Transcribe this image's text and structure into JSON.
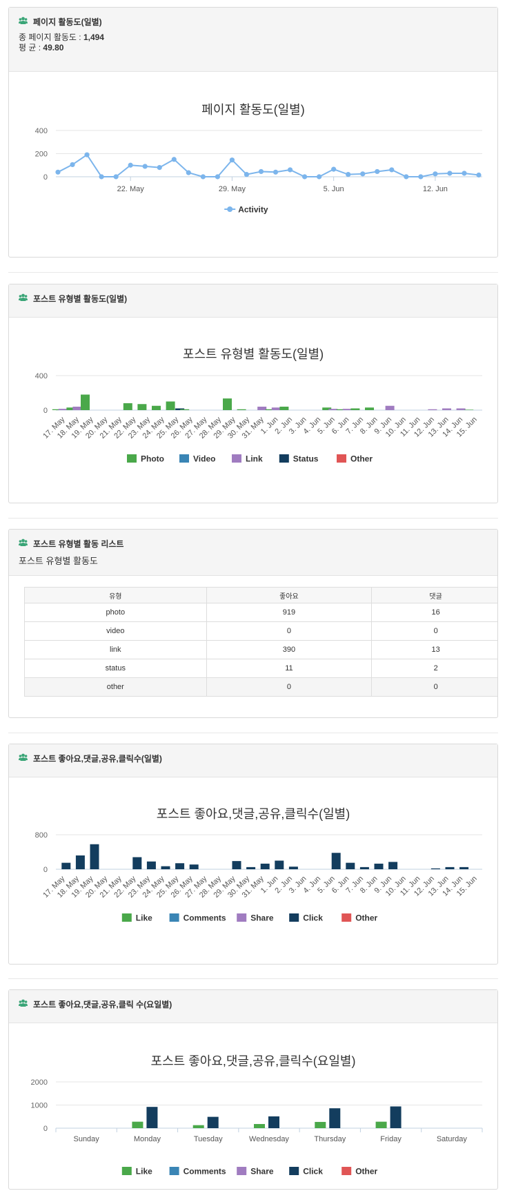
{
  "panels": {
    "page_activity": {
      "title": "페이지 활동도(일별)",
      "total_label": "종 페이지 활동도 : ",
      "total_value": "1,494",
      "avg_label": "평 균 : ",
      "avg_value": "49.80"
    },
    "post_type_activity": {
      "title": "포스트 유형별 활동도(일별)"
    },
    "post_type_list": {
      "title": "포스트 유형별 활동 리스트",
      "subtitle": "포스트 유형별 활동도",
      "columns": [
        "유형",
        "좋아요",
        "댓글"
      ],
      "rows": [
        [
          "photo",
          "919",
          "16"
        ],
        [
          "video",
          "0",
          "0"
        ],
        [
          "link",
          "390",
          "13"
        ],
        [
          "status",
          "11",
          "2"
        ],
        [
          "other",
          "0",
          "0"
        ]
      ]
    },
    "engagement_daily": {
      "title": "포스트 좋아요,댓글,공유,클릭수(일별)"
    },
    "engagement_weekday": {
      "title": "포스트 좋아요,댓글,공유,클릭 수(요일별)"
    }
  },
  "colors": {
    "activity": "#7cb5ec",
    "photo": "#4aa84a",
    "video": "#3a85b5",
    "link": "#a07cc0",
    "status": "#133d5e",
    "other": "#e05555"
  },
  "icon": "users-icon",
  "chart_data": [
    {
      "type": "line",
      "title": "페이지 활동도(일별)",
      "x": [
        "2024-05-17",
        "2024-05-18",
        "2024-05-19",
        "2024-05-20",
        "2024-05-21",
        "2024-05-22",
        "2024-05-23",
        "2024-05-24",
        "2024-05-25",
        "2024-05-26",
        "2024-05-27",
        "2024-05-28",
        "2024-05-29",
        "2024-05-30",
        "2024-05-31",
        "2024-06-01",
        "2024-06-02",
        "2024-06-03",
        "2024-06-04",
        "2024-06-05",
        "2024-06-06",
        "2024-06-07",
        "2024-06-08",
        "2024-06-09",
        "2024-06-10",
        "2024-06-11",
        "2024-06-12",
        "2024-06-13",
        "2024-06-14",
        "2024-06-15"
      ],
      "x_ticks": [
        "22. May",
        "29. May",
        "5. Jun",
        "12. Jun"
      ],
      "x_tick_values": [
        "2024-05-22",
        "2024-05-29",
        "2024-06-05",
        "2024-06-12"
      ],
      "series": [
        {
          "name": "Activity",
          "values": [
            40,
            105,
            190,
            0,
            0,
            100,
            90,
            80,
            150,
            35,
            0,
            0,
            145,
            20,
            45,
            40,
            60,
            0,
            0,
            65,
            20,
            25,
            45,
            60,
            0,
            0,
            25,
            30,
            30,
            15
          ]
        }
      ],
      "yticks": [
        0,
        200,
        400
      ],
      "ylim": [
        0,
        400
      ],
      "grid": true,
      "legend": "bottom"
    },
    {
      "type": "bar",
      "title": "포스트 유형별 활동도(일별)",
      "categories": [
        "17. May",
        "18. May",
        "19. May",
        "20. May",
        "21. May",
        "22. May",
        "23. May",
        "24. May",
        "25. May",
        "26. May",
        "27. May",
        "28. May",
        "29. May",
        "30. May",
        "31. May",
        "1. Jun",
        "2. Jun",
        "3. Jun",
        "4. Jun",
        "5. Jun",
        "6. Jun",
        "7. Jun",
        "8. Jun",
        "9. Jun",
        "10. Jun",
        "11. Jun",
        "12. Jun",
        "13. Jun",
        "14. Jun",
        "15. Jun"
      ],
      "series": [
        {
          "name": "Photo",
          "values": [
            10,
            30,
            180,
            0,
            0,
            80,
            70,
            50,
            100,
            10,
            0,
            0,
            135,
            10,
            0,
            10,
            40,
            0,
            0,
            30,
            10,
            20,
            30,
            0,
            0,
            0,
            0,
            0,
            0,
            5
          ]
        },
        {
          "name": "Video",
          "values": [
            0,
            0,
            0,
            0,
            0,
            0,
            0,
            0,
            0,
            0,
            0,
            0,
            0,
            0,
            0,
            0,
            0,
            0,
            0,
            0,
            0,
            0,
            0,
            0,
            0,
            0,
            0,
            0,
            0,
            0
          ]
        },
        {
          "name": "Link",
          "values": [
            15,
            40,
            0,
            0,
            0,
            0,
            0,
            0,
            0,
            0,
            0,
            0,
            0,
            0,
            40,
            30,
            0,
            0,
            0,
            15,
            15,
            0,
            0,
            50,
            0,
            0,
            10,
            20,
            20,
            0
          ]
        },
        {
          "name": "Status",
          "values": [
            0,
            0,
            0,
            0,
            0,
            0,
            0,
            0,
            20,
            0,
            0,
            0,
            0,
            0,
            0,
            0,
            0,
            0,
            0,
            0,
            0,
            0,
            0,
            0,
            0,
            0,
            0,
            0,
            0,
            0
          ]
        },
        {
          "name": "Other",
          "values": [
            0,
            0,
            0,
            0,
            0,
            0,
            0,
            0,
            0,
            0,
            0,
            0,
            0,
            0,
            0,
            0,
            0,
            0,
            0,
            0,
            0,
            0,
            0,
            0,
            0,
            0,
            0,
            0,
            0,
            0
          ]
        }
      ],
      "yticks": [
        0,
        400
      ],
      "ylim": [
        0,
        400
      ],
      "grid": true,
      "legend": "bottom"
    },
    {
      "type": "bar",
      "title": "포스트 좋아요,댓글,공유,클릭수(일별)",
      "categories": [
        "17. May",
        "18. May",
        "19. May",
        "20. May",
        "21. May",
        "22. May",
        "23. May",
        "24. May",
        "25. May",
        "26. May",
        "27. May",
        "28. May",
        "29. May",
        "30. May",
        "31. May",
        "1. Jun",
        "2. Jun",
        "3. Jun",
        "4. Jun",
        "5. Jun",
        "6. Jun",
        "7. Jun",
        "8. Jun",
        "9. Jun",
        "10. Jun",
        "11. Jun",
        "12. Jun",
        "13. Jun",
        "14. Jun",
        "15. Jun"
      ],
      "series": [
        {
          "name": "Like",
          "values": [
            0,
            0,
            0,
            0,
            0,
            0,
            0,
            0,
            0,
            0,
            0,
            0,
            0,
            0,
            0,
            0,
            0,
            0,
            0,
            0,
            0,
            0,
            0,
            0,
            0,
            0,
            0,
            0,
            0,
            0
          ]
        },
        {
          "name": "Comments",
          "values": [
            0,
            0,
            0,
            0,
            0,
            0,
            0,
            0,
            0,
            0,
            0,
            0,
            0,
            0,
            0,
            0,
            0,
            0,
            0,
            0,
            0,
            0,
            0,
            0,
            0,
            0,
            0,
            0,
            0,
            0
          ]
        },
        {
          "name": "Share",
          "values": [
            0,
            0,
            0,
            0,
            0,
            0,
            0,
            0,
            0,
            0,
            0,
            0,
            0,
            0,
            0,
            0,
            0,
            0,
            0,
            0,
            0,
            0,
            0,
            0,
            0,
            0,
            0,
            0,
            0,
            0
          ]
        },
        {
          "name": "Click",
          "values": [
            150,
            320,
            580,
            0,
            0,
            280,
            180,
            70,
            140,
            110,
            0,
            0,
            190,
            50,
            130,
            200,
            60,
            0,
            0,
            380,
            150,
            50,
            130,
            170,
            0,
            0,
            20,
            50,
            50,
            0
          ]
        },
        {
          "name": "Other",
          "values": [
            0,
            0,
            0,
            0,
            0,
            0,
            0,
            0,
            0,
            0,
            0,
            0,
            0,
            0,
            0,
            0,
            0,
            0,
            0,
            0,
            0,
            0,
            0,
            0,
            0,
            0,
            0,
            0,
            0,
            0
          ]
        }
      ],
      "yticks": [
        0,
        800
      ],
      "ylim": [
        0,
        800
      ],
      "grid": true,
      "legend": "bottom"
    },
    {
      "type": "bar",
      "title": "포스트 좋아요,댓글,공유,클릭수(요일별)",
      "categories": [
        "Sunday",
        "Monday",
        "Tuesday",
        "Wednesday",
        "Thursday",
        "Friday",
        "Saturday"
      ],
      "series": [
        {
          "name": "Like",
          "values": [
            0,
            280,
            130,
            180,
            270,
            280,
            0
          ]
        },
        {
          "name": "Comments",
          "values": [
            0,
            0,
            0,
            0,
            0,
            0,
            0
          ]
        },
        {
          "name": "Share",
          "values": [
            0,
            0,
            0,
            0,
            0,
            0,
            0
          ]
        },
        {
          "name": "Click",
          "values": [
            0,
            920,
            490,
            510,
            860,
            940,
            0
          ]
        },
        {
          "name": "Other",
          "values": [
            0,
            0,
            0,
            0,
            0,
            0,
            0
          ]
        }
      ],
      "yticks": [
        0,
        1000,
        2000
      ],
      "ylim": [
        0,
        2000
      ],
      "grid": true,
      "legend": "bottom"
    }
  ]
}
